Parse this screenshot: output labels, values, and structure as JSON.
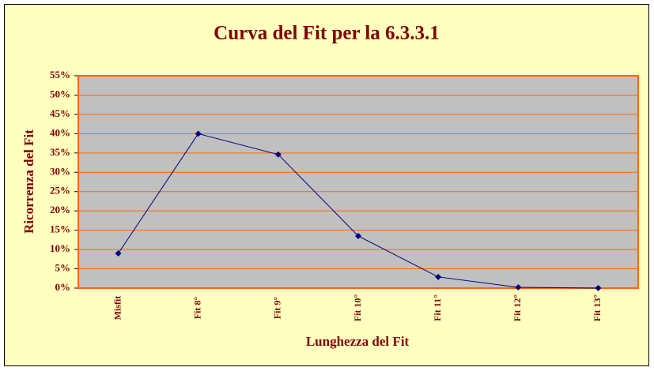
{
  "chart_data": {
    "type": "line",
    "title": "Curva del Fit per la 6.3.3.1",
    "x_label": "Lunghezza del Fit",
    "y_label": "Ricorrenza del Fit",
    "categories": [
      "Misfit",
      "Fit 8°",
      "Fit 9°",
      "Fit 10°",
      "Fit 11°",
      "Fit 12°",
      "Fit 13°"
    ],
    "series": [
      {
        "name": "Ricorrenza",
        "color": "#000080",
        "values": [
          9,
          40,
          34.6,
          13.5,
          2.9,
          0.2,
          0
        ]
      }
    ],
    "ylim": [
      0,
      55
    ],
    "yticks": [
      {
        "value": 0,
        "label": "0%"
      },
      {
        "value": 5,
        "label": "5%"
      },
      {
        "value": 10,
        "label": "10%"
      },
      {
        "value": 15,
        "label": "15%"
      },
      {
        "value": 20,
        "label": "20%"
      },
      {
        "value": 25,
        "label": "25%"
      },
      {
        "value": 30,
        "label": "30%"
      },
      {
        "value": 35,
        "label": "35%"
      },
      {
        "value": 40,
        "label": "40%"
      },
      {
        "value": 45,
        "label": "45%"
      },
      {
        "value": 50,
        "label": "50%"
      },
      {
        "value": 55,
        "label": "55%"
      }
    ],
    "grid": true
  }
}
